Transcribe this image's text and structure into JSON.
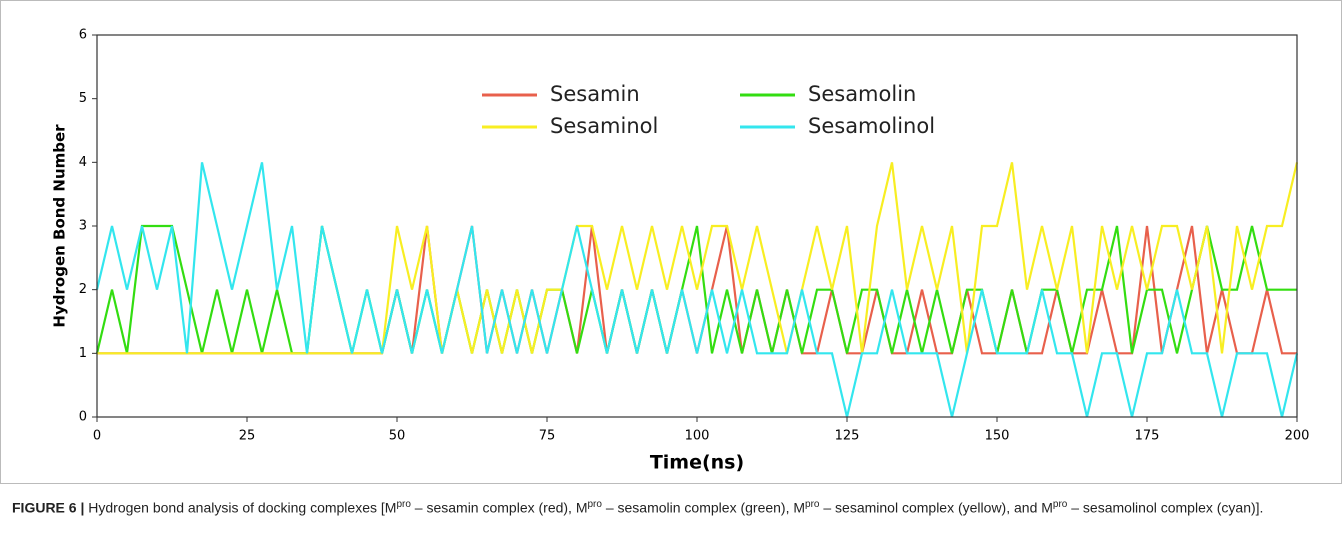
{
  "chart_data": {
    "type": "line",
    "x": [
      0,
      2.5,
      5,
      7.5,
      10,
      12.5,
      15,
      17.5,
      20,
      22.5,
      25,
      27.5,
      30,
      32.5,
      35,
      37.5,
      40,
      42.5,
      45,
      47.5,
      50,
      52.5,
      55,
      57.5,
      60,
      62.5,
      65,
      67.5,
      70,
      72.5,
      75,
      77.5,
      80,
      82.5,
      85,
      87.5,
      90,
      92.5,
      95,
      97.5,
      100,
      102.5,
      105,
      107.5,
      110,
      112.5,
      115,
      117.5,
      120,
      122.5,
      125,
      127.5,
      130,
      132.5,
      135,
      137.5,
      140,
      142.5,
      145,
      147.5,
      150,
      152.5,
      155,
      157.5,
      160,
      162.5,
      165,
      167.5,
      170,
      172.5,
      175,
      177.5,
      180,
      182.5,
      185,
      187.5,
      190,
      192.5,
      195,
      197.5,
      200
    ],
    "series": [
      {
        "name": "Sesamin",
        "color": "#e8604c",
        "values": [
          1,
          1,
          1,
          1,
          1,
          1,
          1,
          1,
          1,
          1,
          1,
          1,
          1,
          1,
          1,
          1,
          1,
          1,
          1,
          1,
          2,
          1,
          3,
          1,
          2,
          3,
          1,
          2,
          1,
          2,
          1,
          2,
          1,
          3,
          1,
          2,
          1,
          2,
          1,
          2,
          1,
          2,
          3,
          1,
          2,
          1,
          2,
          1,
          1,
          2,
          1,
          1,
          2,
          1,
          1,
          2,
          1,
          1,
          2,
          1,
          1,
          2,
          1,
          1,
          2,
          1,
          1,
          2,
          1,
          1,
          3,
          1,
          2,
          3,
          1,
          2,
          1,
          1,
          2,
          1,
          1
        ]
      },
      {
        "name": "Sesamolin",
        "color": "#33dd11",
        "values": [
          1,
          2,
          1,
          3,
          3,
          3,
          2,
          1,
          2,
          1,
          2,
          1,
          2,
          1,
          1,
          3,
          2,
          1,
          2,
          1,
          2,
          1,
          2,
          1,
          2,
          1,
          2,
          1,
          2,
          1,
          2,
          2,
          1,
          2,
          1,
          2,
          1,
          2,
          1,
          2,
          3,
          1,
          2,
          1,
          2,
          1,
          2,
          1,
          2,
          2,
          1,
          2,
          2,
          1,
          2,
          1,
          2,
          1,
          2,
          2,
          1,
          2,
          1,
          2,
          2,
          1,
          2,
          2,
          3,
          1,
          2,
          2,
          1,
          2,
          3,
          2,
          2,
          3,
          2,
          2,
          2
        ]
      },
      {
        "name": "Sesaminol",
        "color": "#f8ee22",
        "values": [
          1,
          1,
          1,
          1,
          1,
          1,
          1,
          1,
          1,
          1,
          1,
          1,
          1,
          1,
          1,
          1,
          1,
          1,
          1,
          1,
          3,
          2,
          3,
          1,
          2,
          1,
          2,
          1,
          2,
          1,
          2,
          2,
          3,
          3,
          2,
          3,
          2,
          3,
          2,
          3,
          2,
          3,
          3,
          2,
          3,
          2,
          1,
          2,
          3,
          2,
          3,
          1,
          3,
          4,
          2,
          3,
          2,
          3,
          1,
          3,
          3,
          4,
          2,
          3,
          2,
          3,
          1,
          3,
          2,
          3,
          2,
          3,
          3,
          2,
          3,
          1,
          3,
          2,
          3,
          3,
          4
        ]
      },
      {
        "name": "Sesamolinol",
        "color": "#33e6ee",
        "values": [
          2,
          3,
          2,
          3,
          2,
          3,
          1,
          4,
          3,
          2,
          3,
          4,
          2,
          3,
          1,
          3,
          2,
          1,
          2,
          1,
          2,
          1,
          2,
          1,
          2,
          3,
          1,
          2,
          1,
          2,
          1,
          2,
          3,
          2,
          1,
          2,
          1,
          2,
          1,
          2,
          1,
          2,
          1,
          2,
          1,
          1,
          1,
          2,
          1,
          1,
          0,
          1,
          1,
          2,
          1,
          1,
          1,
          0,
          1,
          2,
          1,
          1,
          1,
          2,
          1,
          1,
          0,
          1,
          1,
          0,
          1,
          1,
          2,
          1,
          1,
          0,
          1,
          1,
          1,
          0,
          1
        ]
      }
    ],
    "xlabel": "Time(ns)",
    "ylabel": "Hydrogen Bond Number",
    "xlim": [
      0,
      200
    ],
    "xticks": [
      0,
      25,
      50,
      75,
      100,
      125,
      150,
      175,
      200
    ],
    "ylim": [
      0,
      6
    ],
    "yticks": [
      0,
      1,
      2,
      3,
      4,
      5,
      6
    ],
    "grid": false,
    "legend": "upper center"
  },
  "caption": {
    "label": "FIGURE 6 |",
    "parts": [
      "Hydrogen bond analysis of docking complexes [M",
      "pro",
      " – sesamin complex (red), M",
      "pro",
      " – sesamolin complex (green), M",
      "pro",
      " – sesaminol complex (yellow), and M",
      "pro",
      " – sesamolinol complex (cyan)]."
    ]
  }
}
